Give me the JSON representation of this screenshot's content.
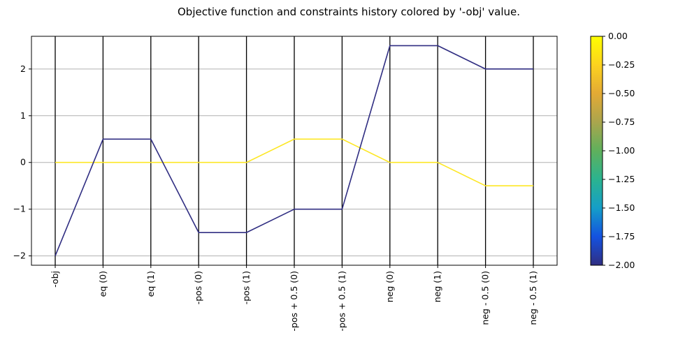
{
  "chart_data": {
    "type": "line",
    "title": "Objective function and constraints history colored by '-obj' value.",
    "categories": [
      "-obj",
      "eq (0)",
      "eq (1)",
      "-pos (0)",
      "-pos (1)",
      "-pos + 0.5 (0)",
      "-pos + 0.5 (1)",
      "neg (0)",
      "neg (1)",
      "neg - 0.5 (0)",
      "neg - 0.5 (1)"
    ],
    "ylim": [
      -2.2,
      2.7
    ],
    "yticks": [
      -2,
      -1,
      0,
      1,
      2
    ],
    "ytick_labels": [
      "−2",
      "−1",
      "0",
      "1",
      "2"
    ],
    "grid": "horizontal",
    "series": [
      {
        "color_value": 0,
        "color": "#fde725",
        "values": [
          0,
          0,
          0,
          0,
          0,
          0.5,
          0.5,
          0,
          0,
          -0.5,
          -0.5
        ]
      },
      {
        "color_value": -2,
        "color": "#302e82",
        "values": [
          -2,
          0.5,
          0.5,
          -1.5,
          -1.5,
          -1,
          -1,
          2.5,
          2.5,
          2,
          2
        ]
      }
    ],
    "colorbar": {
      "label": "",
      "range": [
        -2,
        0
      ],
      "ticks": [
        0,
        -0.25,
        -0.5,
        -0.75,
        -1,
        -1.25,
        -1.5,
        -1.75,
        -2
      ],
      "tick_labels": [
        "0.00",
        "−0.25",
        "−0.50",
        "−0.75",
        "−1.00",
        "−1.25",
        "−1.50",
        "−1.75",
        "−2.00"
      ],
      "colormap": [
        "#302e82",
        "#1452e0",
        "#159ec8",
        "#2bb38f",
        "#5fb05c",
        "#aaa54d",
        "#e3aa35",
        "#fcd21f",
        "#ffff00"
      ]
    }
  }
}
